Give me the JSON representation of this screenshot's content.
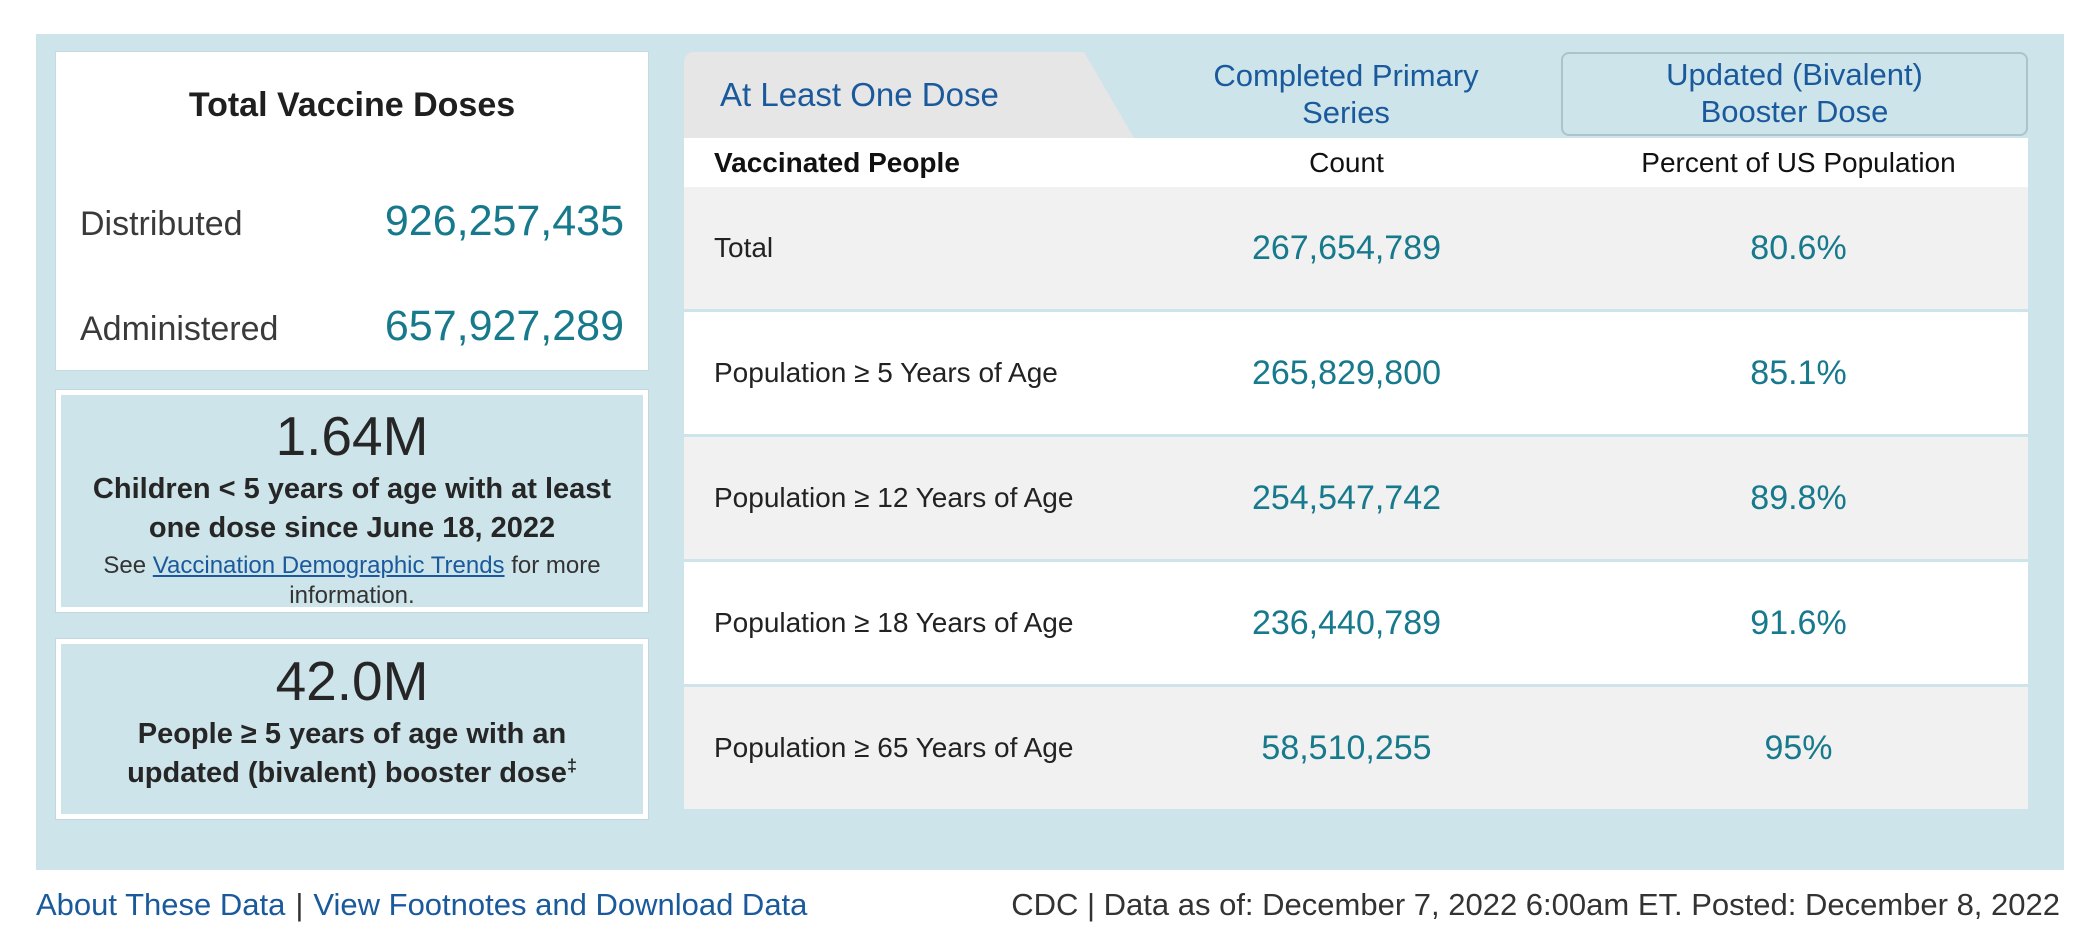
{
  "colors": {
    "panel_bg": "#cde4ea",
    "selected_tab_bg": "#e6e6e6",
    "alt_row_bg": "#f1f1f1",
    "accent_blue": "#1a5a9c",
    "accent_teal": "#17798c"
  },
  "left_panel": {
    "doses_card": {
      "title": "Total Vaccine Doses",
      "rows": [
        {
          "label": "Distributed",
          "value": "926,257,435"
        },
        {
          "label": "Administered",
          "value": "657,927,289"
        }
      ]
    },
    "boxes": [
      {
        "value": "1.64M",
        "description": "Children < 5 years of age with at least one dose since June 18, 2022",
        "note_prefix": "See ",
        "note_link": "Vaccination Demographic Trends",
        "note_suffix": " for more information."
      },
      {
        "value": "42.0M",
        "description": "People ≥ 5 years of age with an updated (bivalent) booster dose",
        "footnote_marker": "‡"
      }
    ]
  },
  "tabs": [
    {
      "label": "At Least One Dose",
      "state": "selected"
    },
    {
      "line1": "Completed Primary",
      "line2": "Series",
      "state": "unselected"
    },
    {
      "line1": "Updated (Bivalent)",
      "line2": "Booster Dose",
      "state": "unselected"
    }
  ],
  "table": {
    "headers": {
      "people": "Vaccinated People",
      "count": "Count",
      "percent": "Percent of US Population"
    },
    "rows": [
      {
        "label": "Total",
        "count": "267,654,789",
        "percent": "80.6%"
      },
      {
        "label": "Population ≥ 5 Years of Age",
        "count": "265,829,800",
        "percent": "85.1%"
      },
      {
        "label": "Population ≥ 12 Years of Age",
        "count": "254,547,742",
        "percent": "89.8%"
      },
      {
        "label": "Population ≥ 18 Years of Age",
        "count": "236,440,789",
        "percent": "91.6%"
      },
      {
        "label": "Population ≥ 65 Years of Age",
        "count": "58,510,255",
        "percent": "95%"
      }
    ]
  },
  "footer": {
    "link1": "About These Data",
    "separator": "|",
    "link2": "View Footnotes and Download Data",
    "source": "CDC | Data as of: December 7, 2022 6:00am ET. Posted: December 8, 2022"
  }
}
